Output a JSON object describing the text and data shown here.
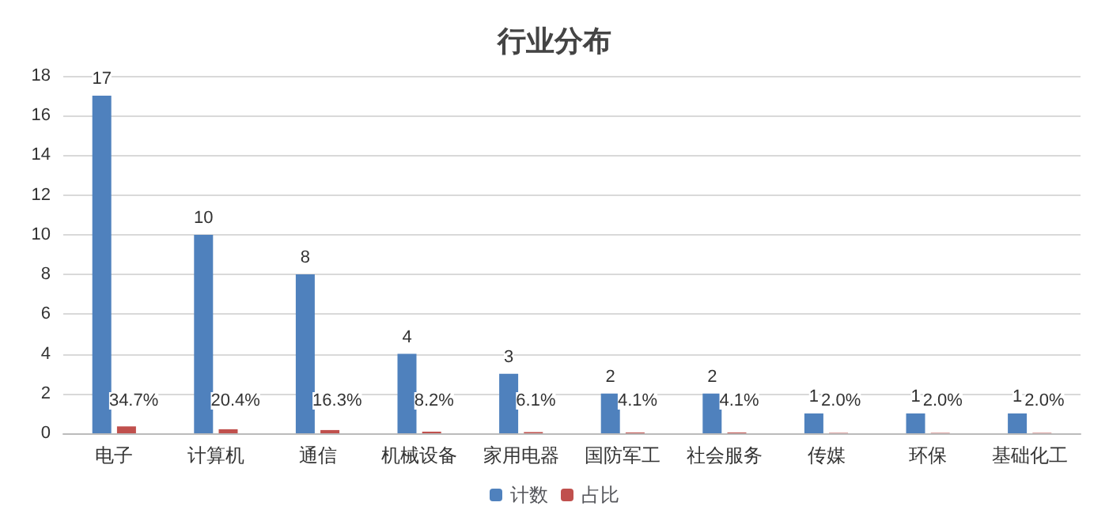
{
  "chart_data": {
    "type": "bar",
    "title": "行业分布",
    "categories": [
      "电子",
      "计算机",
      "通信",
      "机械设备",
      "家用电器",
      "国防军工",
      "社会服务",
      "传媒",
      "环保",
      "基础化工"
    ],
    "series": [
      {
        "name": "计数",
        "color": "#4f81bd",
        "values": [
          17,
          10,
          8,
          4,
          3,
          2,
          2,
          1,
          1,
          1
        ],
        "value_labels": [
          "17",
          "10",
          "8",
          "4",
          "3",
          "2",
          "2",
          "1",
          "1",
          "1"
        ]
      },
      {
        "name": "占比",
        "color": "#c0504d",
        "values": [
          0.347,
          0.204,
          0.163,
          0.082,
          0.061,
          0.041,
          0.041,
          0.02,
          0.02,
          0.02
        ],
        "value_labels": [
          "34.7%",
          "20.4%",
          "16.3%",
          "8.2%",
          "6.1%",
          "4.1%",
          "4.1%",
          "2.0%",
          "2.0%",
          "2.0%"
        ]
      }
    ],
    "ylim": [
      0,
      18
    ],
    "yticks": [
      0,
      2,
      4,
      6,
      8,
      10,
      12,
      14,
      16,
      18
    ],
    "grid": "y",
    "legend": "bottom"
  }
}
